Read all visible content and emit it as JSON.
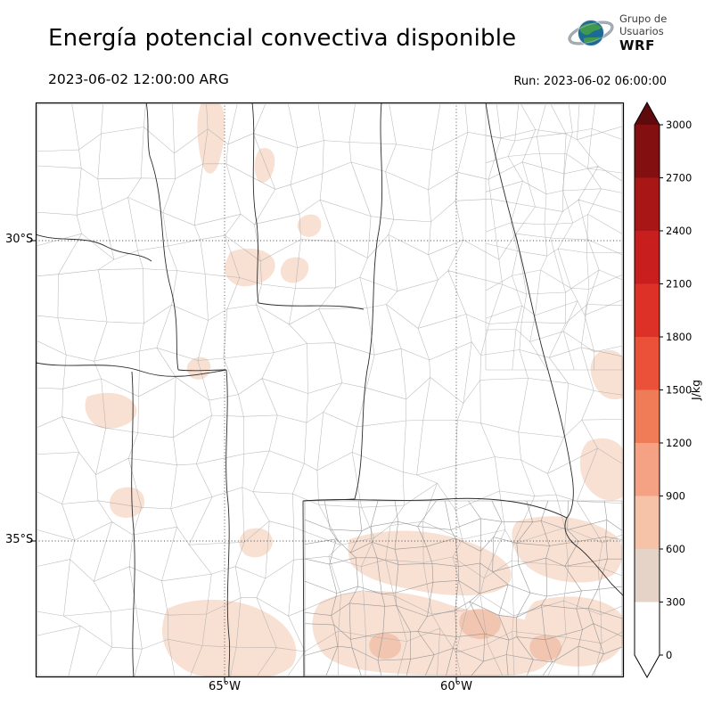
{
  "header": {
    "title": "Energía potencial convectiva disponible",
    "valid_time": "2023-06-02 12:00:00 ARG",
    "run": "Run: 2023-06-02 06:00:00"
  },
  "logo": {
    "line1": "Grupo de",
    "line2": "Usuarios",
    "line3": "WRF"
  },
  "axes": {
    "lat": [
      "30°S",
      "35°S"
    ],
    "lon": [
      "65°W",
      "60°W"
    ]
  },
  "colorbar": {
    "unit": "J/kg",
    "ticks_top_to_bottom": [
      "3000",
      "2700",
      "2400",
      "2100",
      "1800",
      "1500",
      "1200",
      "900",
      "600",
      "300",
      "0"
    ],
    "segment_colors_top_to_bottom": [
      "#840f11",
      "#a81616",
      "#c81e1e",
      "#dd3026",
      "#ea5138",
      "#f07b57",
      "#f5a183",
      "#f6c3a8",
      "#e5d3c7",
      "#ffffff"
    ],
    "over_color": "#5f0a0d",
    "under_color": "#ffffff"
  },
  "chart_data": {
    "type": "heatmap",
    "title": "Energía potencial convectiva disponible",
    "unit": "J/kg",
    "levels": [
      0,
      300,
      600,
      900,
      1200,
      1500,
      1800,
      2100,
      2400,
      2700,
      3000
    ],
    "colorbar_colors_low_to_high": [
      "#ffffff",
      "#e5d3c7",
      "#f6c3a8",
      "#f5a183",
      "#f07b57",
      "#ea5138",
      "#dd3026",
      "#c81e1e",
      "#a81616",
      "#840f11"
    ],
    "x_ticks": [
      "65°W",
      "60°W"
    ],
    "y_ticks": [
      "30°S",
      "35°S"
    ],
    "observed_values": "Field mostly 0 J/kg; light shading in the lowest bins (≈0–600 J/kg) over southeastern Buenos Aires province, along the eastern map edge, and in small scattered inland patches"
  }
}
